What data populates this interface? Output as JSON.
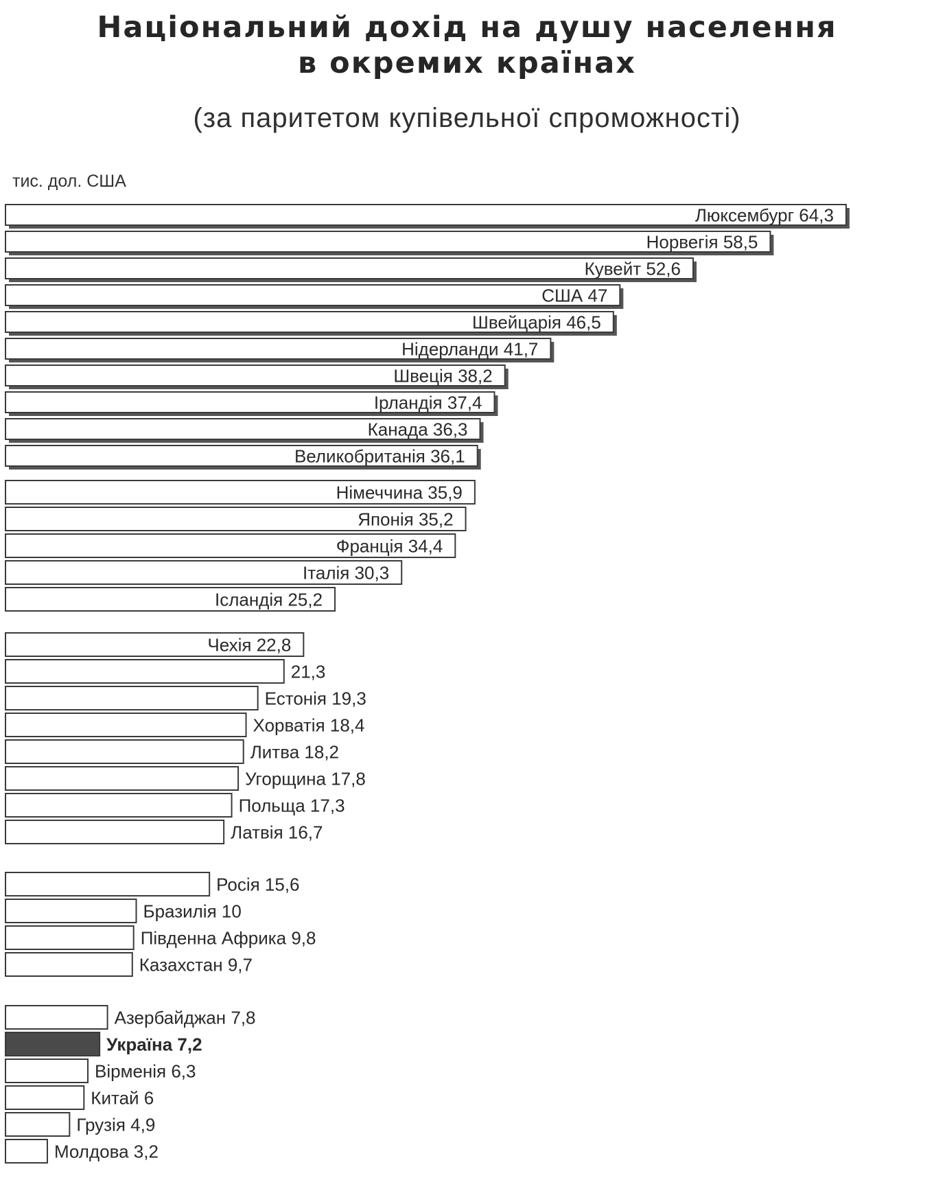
{
  "chart_data": {
    "type": "bar",
    "orientation": "horizontal",
    "title_line1": "Національний дохід на душу населення",
    "title_line2": "в окремих країнах",
    "subtitle": "(за паритетом купівельної спроможності)",
    "ylabel": "тис. дол. США",
    "xlim": [
      0,
      64.3
    ],
    "grid": false,
    "legend": "none",
    "colors": {
      "bar_fill": "#ffffff",
      "bar_stroke": "#3a3a3a",
      "highlight_fill": "#4a4a4a",
      "shadow": "#555555",
      "text": "#2a2a2a"
    },
    "groups": [
      {
        "style": "shadow",
        "items": [
          {
            "label": "Люксембург",
            "value_text": "64,3",
            "value": 64.3
          },
          {
            "label": "Норвегія",
            "value_text": "58,5",
            "value": 58.5
          },
          {
            "label": "Кувейт",
            "value_text": "52,6",
            "value": 52.6
          },
          {
            "label": "США",
            "value_text": "47",
            "value": 47
          },
          {
            "label": "Швейцарія",
            "value_text": "46,5",
            "value": 46.5
          },
          {
            "label": "Нідерланди",
            "value_text": "41,7",
            "value": 41.7
          },
          {
            "label": "Швеція",
            "value_text": "38,2",
            "value": 38.2
          },
          {
            "label": "Ірландія",
            "value_text": "37,4",
            "value": 37.4
          },
          {
            "label": "Канада",
            "value_text": "36,3",
            "value": 36.3
          },
          {
            "label": "Великобританія",
            "value_text": "36,1",
            "value": 36.1
          }
        ]
      },
      {
        "style": "plain-inside",
        "items": [
          {
            "label": "Німеччина",
            "value_text": "35,9",
            "value": 35.9
          },
          {
            "label": "Японія",
            "value_text": "35,2",
            "value": 35.2
          },
          {
            "label": "Франція",
            "value_text": "34,4",
            "value": 34.4
          },
          {
            "label": "Італія",
            "value_text": "30,3",
            "value": 30.3
          },
          {
            "label": "Ісландія",
            "value_text": "25,2",
            "value": 25.2
          }
        ]
      },
      {
        "style": "outside",
        "items": [
          {
            "label": "Чехія",
            "value_text": "22,8",
            "value": 22.8,
            "inside": true
          },
          {
            "label": "",
            "value_text": "21,3",
            "value": 21.3
          },
          {
            "label": "Естонія",
            "value_text": "19,3",
            "value": 19.3
          },
          {
            "label": "Хорватія",
            "value_text": "18,4",
            "value": 18.4
          },
          {
            "label": "Литва",
            "value_text": "18,2",
            "value": 18.2
          },
          {
            "label": "Угорщина",
            "value_text": "17,8",
            "value": 17.8
          },
          {
            "label": "Польща",
            "value_text": "17,3",
            "value": 17.3
          },
          {
            "label": "Латвія",
            "value_text": "16,7",
            "value": 16.7
          }
        ]
      },
      {
        "style": "outside",
        "items": [
          {
            "label": "Росія",
            "value_text": "15,6",
            "value": 15.6
          },
          {
            "label": "Бразилія",
            "value_text": "10",
            "value": 10
          },
          {
            "label": "Південна Африка",
            "value_text": "9,8",
            "value": 9.8
          },
          {
            "label": "Казахстан",
            "value_text": "9,7",
            "value": 9.7
          }
        ]
      },
      {
        "style": "outside",
        "items": [
          {
            "label": "Азербайджан",
            "value_text": "7,8",
            "value": 7.8
          },
          {
            "label": "Україна",
            "value_text": "7,2",
            "value": 7.2,
            "highlight": true
          },
          {
            "label": "Вірменія",
            "value_text": "6,3",
            "value": 6.3
          },
          {
            "label": "Китай",
            "value_text": "6",
            "value": 6
          },
          {
            "label": "Грузія",
            "value_text": "4,9",
            "value": 4.9
          },
          {
            "label": "Молдова",
            "value_text": "3,2",
            "value": 3.2
          }
        ]
      }
    ]
  }
}
